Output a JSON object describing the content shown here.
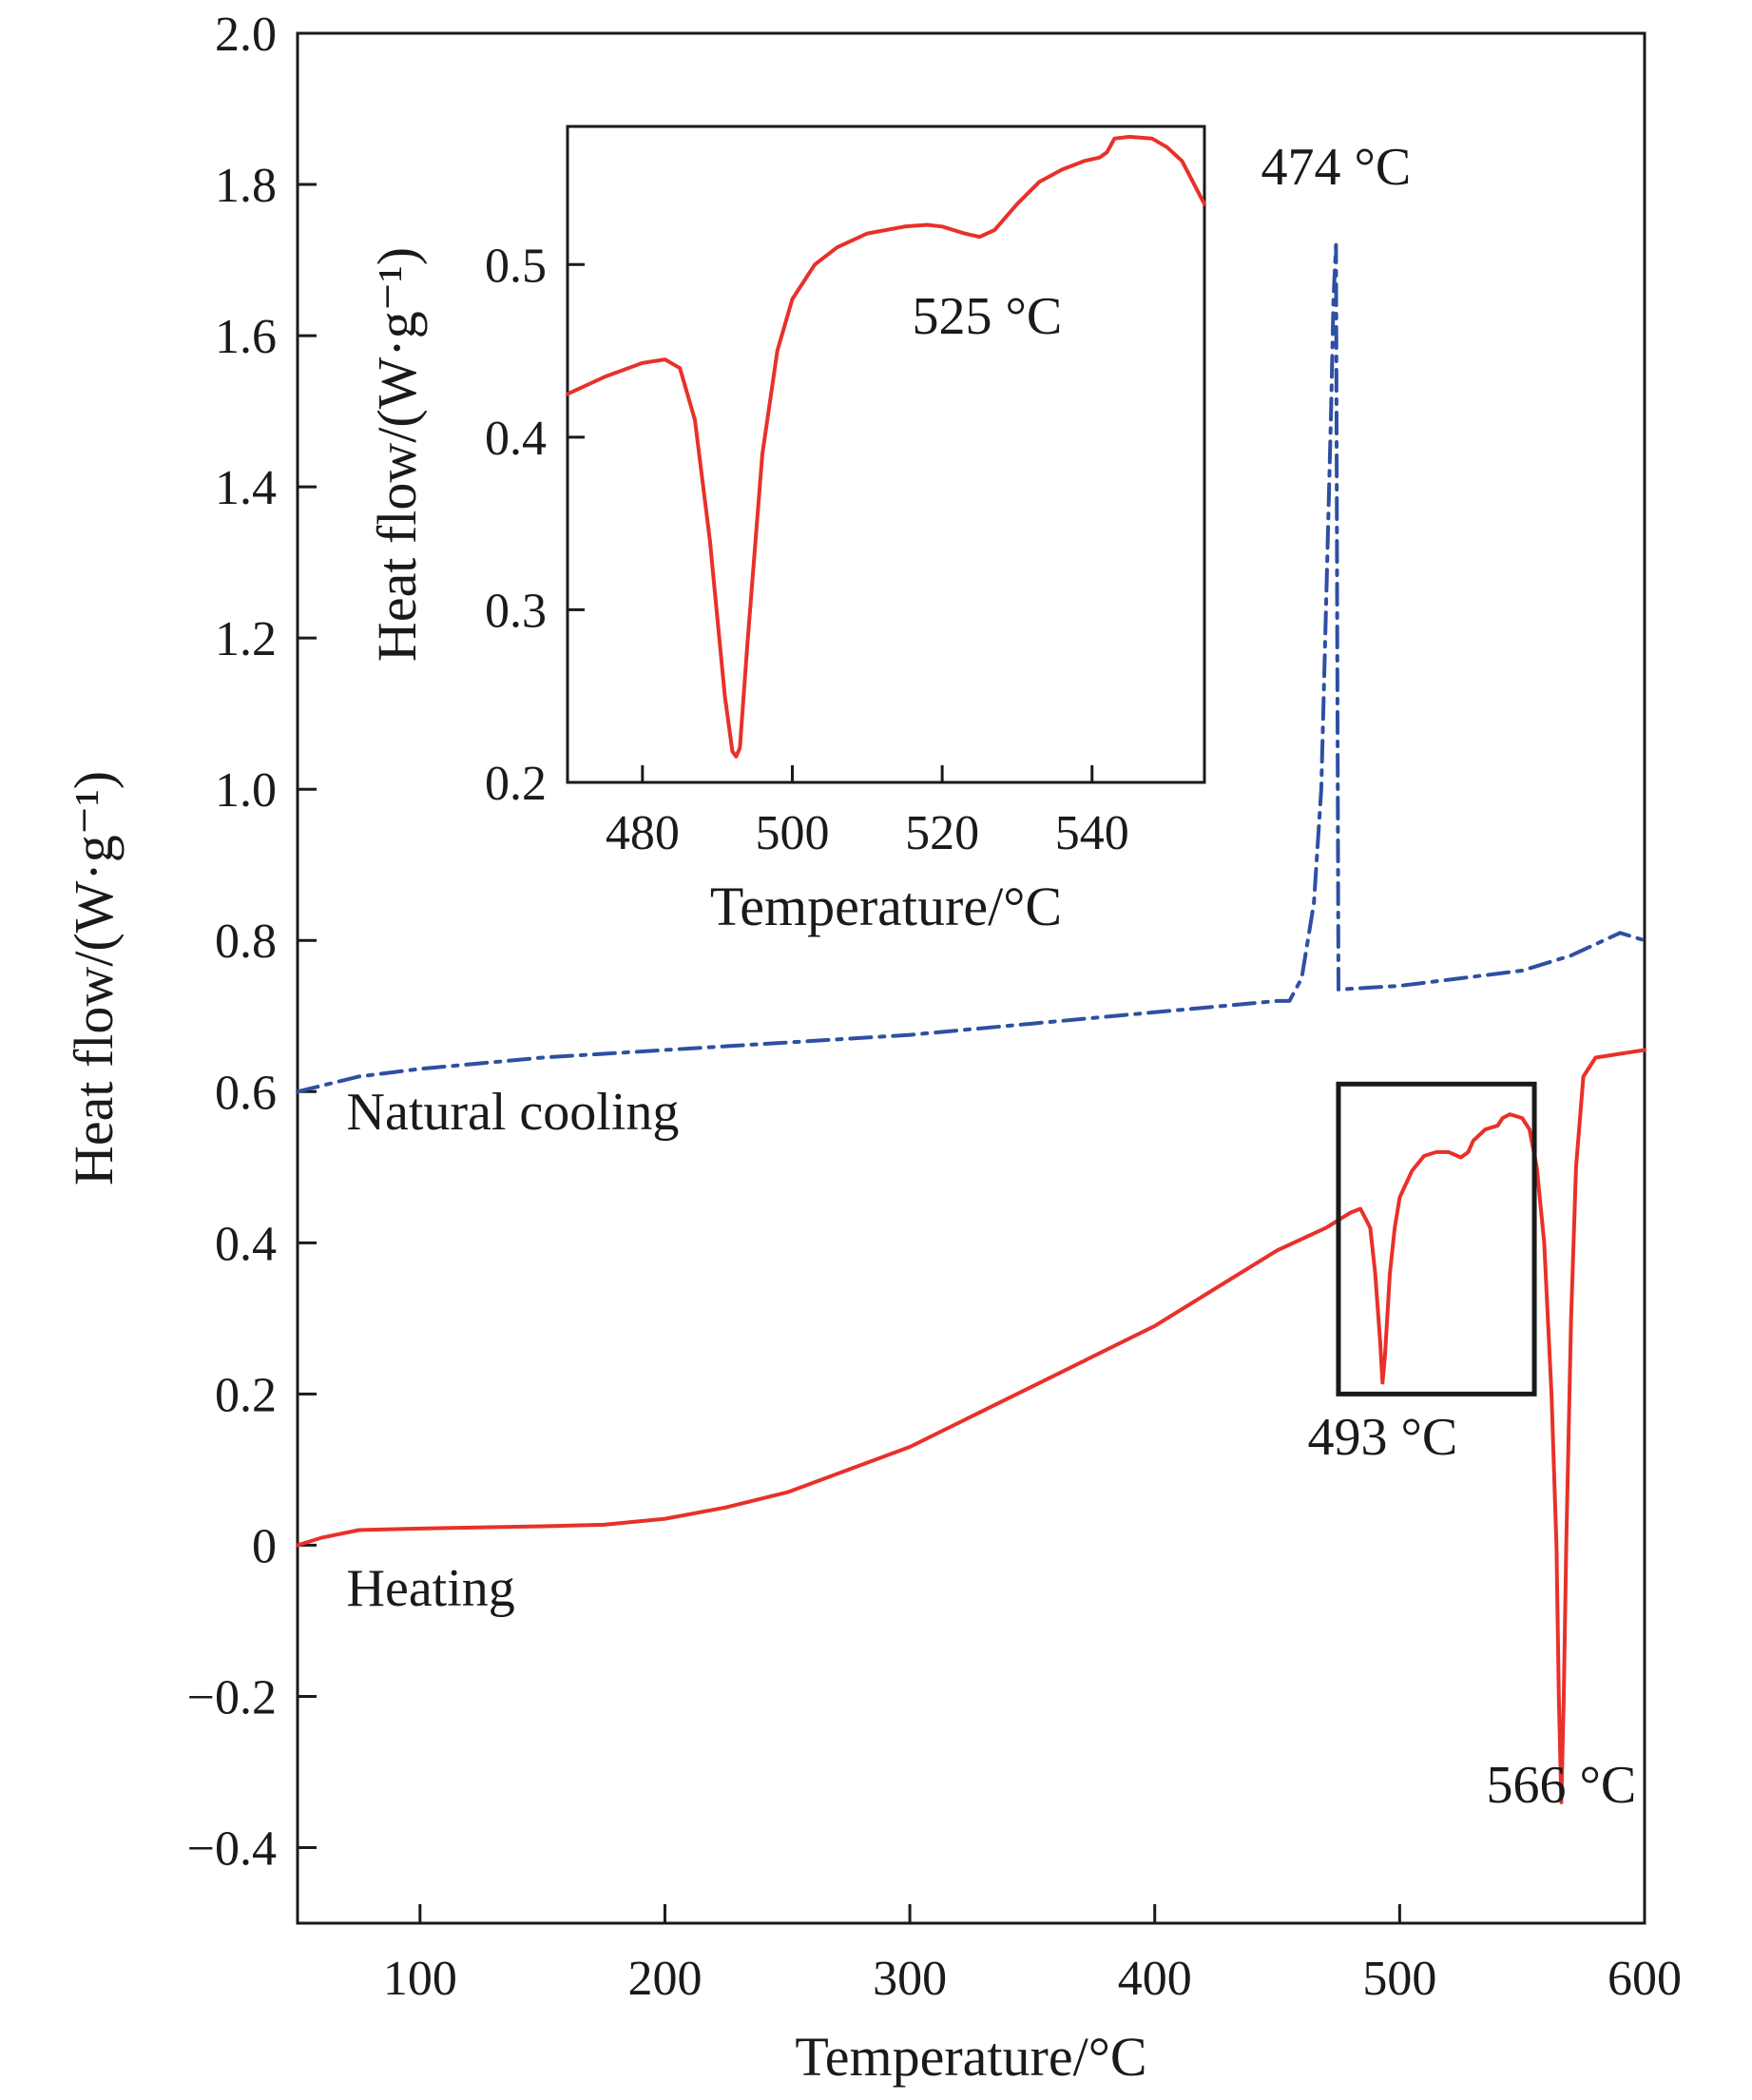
{
  "chart_data": [
    {
      "type": "line",
      "xlabel": "Temperature/°C",
      "ylabel": "Heat flow/(W·g⁻¹)",
      "xlim": [
        50,
        600
      ],
      "ylim": [
        -0.5,
        2.0
      ],
      "xticks": [
        100,
        200,
        300,
        400,
        500,
        600
      ],
      "xtick_labels": [
        "100",
        "200",
        "300",
        "400",
        "500",
        "600"
      ],
      "yticks": [
        -0.4,
        -0.2,
        0,
        0.2,
        0.4,
        0.6,
        0.8,
        1.0,
        1.2,
        1.4,
        1.6,
        1.8,
        2.0
      ],
      "ytick_labels": [
        "−0.4",
        "−0.2",
        "0",
        "0.2",
        "0.4",
        "0.6",
        "0.8",
        "1.0",
        "1.2",
        "1.4",
        "1.6",
        "1.8",
        "2.0"
      ],
      "grid": false,
      "series": [
        {
          "name": "Natural cooling",
          "color": "#2e4fa3",
          "style": "dash-dot",
          "x": [
            50,
            75,
            100,
            150,
            200,
            250,
            300,
            350,
            400,
            450,
            455,
            460,
            465,
            468,
            470,
            472,
            473,
            474,
            474.5,
            475,
            500,
            525,
            550,
            570,
            590,
            600
          ],
          "y": [
            0.6,
            0.62,
            0.63,
            0.645,
            0.655,
            0.665,
            0.675,
            0.69,
            0.705,
            0.72,
            0.72,
            0.75,
            0.85,
            1.0,
            1.25,
            1.5,
            1.65,
            1.72,
            1.2,
            0.735,
            0.74,
            0.75,
            0.76,
            0.78,
            0.81,
            0.8
          ]
        },
        {
          "name": "Heating",
          "color": "#e8312a",
          "style": "solid",
          "x": [
            50,
            60,
            75,
            100,
            150,
            175,
            200,
            225,
            250,
            275,
            300,
            325,
            350,
            375,
            400,
            425,
            450,
            470,
            480,
            484,
            488,
            490,
            492,
            493,
            494,
            496,
            498,
            500,
            505,
            510,
            515,
            520,
            525,
            528,
            530,
            535,
            540,
            542,
            545,
            550,
            553,
            556,
            559,
            562,
            564,
            565,
            566,
            567,
            568,
            570,
            572,
            575,
            580,
            590,
            600
          ],
          "y": [
            0.0,
            0.01,
            0.02,
            0.022,
            0.025,
            0.027,
            0.035,
            0.05,
            0.07,
            0.1,
            0.13,
            0.17,
            0.21,
            0.25,
            0.29,
            0.34,
            0.39,
            0.42,
            0.44,
            0.445,
            0.42,
            0.36,
            0.27,
            0.215,
            0.25,
            0.36,
            0.42,
            0.46,
            0.495,
            0.515,
            0.52,
            0.52,
            0.513,
            0.52,
            0.535,
            0.55,
            0.555,
            0.565,
            0.57,
            0.565,
            0.55,
            0.5,
            0.4,
            0.2,
            0.0,
            -0.2,
            -0.34,
            -0.2,
            0.0,
            0.3,
            0.5,
            0.62,
            0.645,
            0.65,
            0.655
          ]
        }
      ],
      "annotations": [
        {
          "text": "474 °C",
          "x": 474,
          "y": 1.8
        },
        {
          "text": "493 °C",
          "x": 493,
          "y": 0.12
        },
        {
          "text": "566 °C",
          "x": 566,
          "y": -0.34
        },
        {
          "text": "Natural cooling",
          "x": 70,
          "y": 0.55
        },
        {
          "text": "Heating",
          "x": 70,
          "y": -0.08
        }
      ],
      "highlight_box": {
        "x": [
          475,
          555
        ],
        "y": [
          0.2,
          0.61
        ]
      }
    },
    {
      "type": "line",
      "role": "inset",
      "xlabel": "Temperature/°C",
      "ylabel": "Heat flow/(W·g⁻¹)",
      "xlim": [
        470,
        555
      ],
      "ylim": [
        0.2,
        0.58
      ],
      "xticks": [
        480,
        500,
        520,
        540
      ],
      "xtick_labels": [
        "480",
        "500",
        "520",
        "540"
      ],
      "yticks": [
        0.2,
        0.3,
        0.4,
        0.5
      ],
      "ytick_labels": [
        "0.2",
        "0.3",
        "0.4",
        "0.5"
      ],
      "grid": false,
      "series": [
        {
          "name": "Heating",
          "color": "#e8312a",
          "style": "solid",
          "x": [
            470,
            475,
            480,
            483,
            485,
            487,
            489,
            491,
            492,
            492.5,
            493,
            494,
            496,
            498,
            500,
            503,
            506,
            510,
            515,
            518,
            520,
            523,
            525,
            527,
            530,
            533,
            536,
            539,
            541,
            542,
            543,
            545,
            548,
            550,
            552,
            555
          ],
          "y": [
            0.425,
            0.435,
            0.443,
            0.445,
            0.44,
            0.41,
            0.34,
            0.25,
            0.218,
            0.215,
            0.22,
            0.28,
            0.39,
            0.45,
            0.48,
            0.5,
            0.51,
            0.518,
            0.522,
            0.523,
            0.522,
            0.518,
            0.516,
            0.52,
            0.535,
            0.548,
            0.555,
            0.56,
            0.562,
            0.565,
            0.573,
            0.574,
            0.573,
            0.568,
            0.56,
            0.535
          ]
        }
      ],
      "annotations": [
        {
          "text": "525 °C",
          "x": 526,
          "y": 0.46
        }
      ]
    }
  ]
}
